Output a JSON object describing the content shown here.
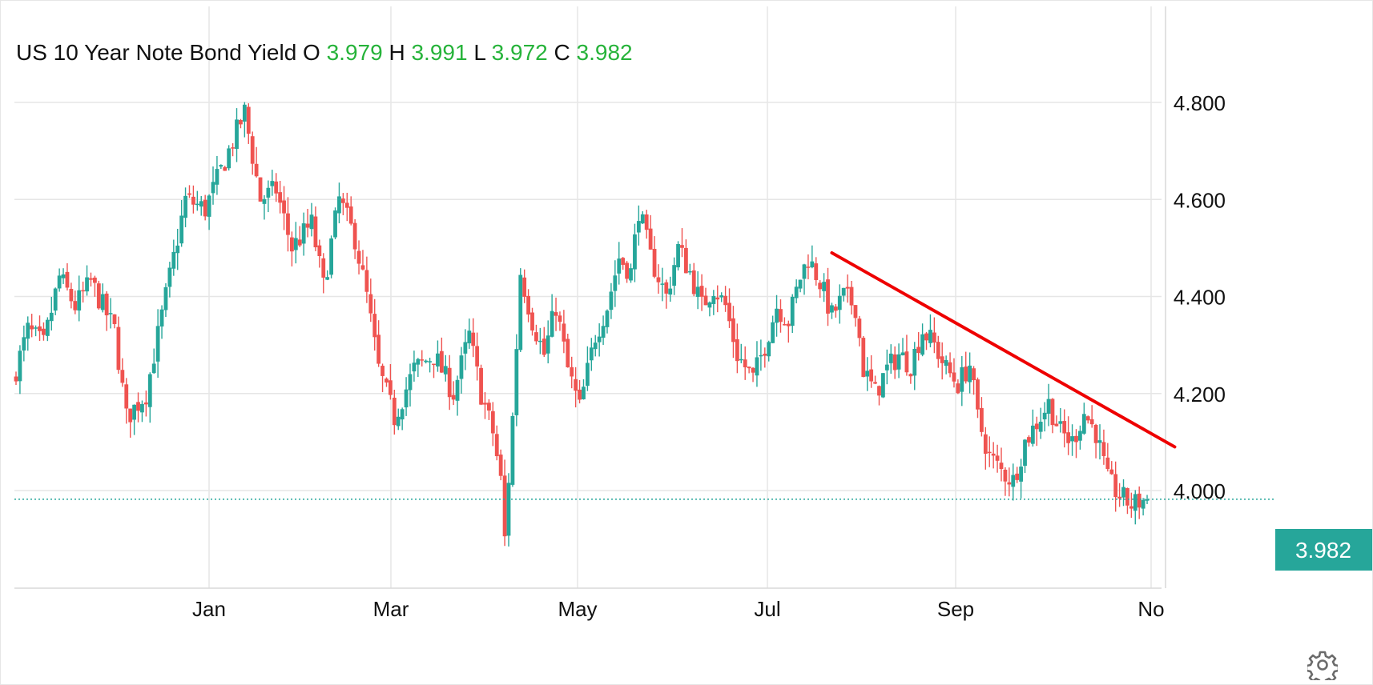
{
  "legend": {
    "title": "US 10 Year Note Bond Yield",
    "o_label": "O",
    "o_value": "3.979",
    "h_label": "H",
    "h_value": "3.991",
    "l_label": "L",
    "l_value": "3.972",
    "c_label": "C",
    "c_value": "3.982"
  },
  "last_price_label": "3.982",
  "colors": {
    "up": "#26a69a",
    "down": "#ef5350",
    "trendline": "#ee0000",
    "last_price_bg": "#26a69a",
    "legend_values": "#26b33a",
    "grid": "#e6e6e6"
  },
  "settings_icon": "gear-icon",
  "chart_data": {
    "type": "candlestick",
    "title": "US 10 Year Note Bond Yield",
    "x_tick_labels": [
      "Jan",
      "Mar",
      "May",
      "Jul",
      "Sep",
      "No"
    ],
    "y_tick_labels": [
      "4.800",
      "4.600",
      "4.400",
      "4.200",
      "4.000"
    ],
    "y_ticks": [
      4.8,
      4.6,
      4.4,
      4.2,
      4.0
    ],
    "ylim": [
      3.8,
      4.98
    ],
    "grid": true,
    "last_price": 3.982,
    "ohlc": {
      "open": 3.979,
      "high": 3.991,
      "low": 3.972,
      "close": 3.982
    },
    "close_anchors": [
      {
        "t": 0,
        "v": 4.25
      },
      {
        "t": 3,
        "v": 4.33
      },
      {
        "t": 7,
        "v": 4.3
      },
      {
        "t": 11,
        "v": 4.44
      },
      {
        "t": 15,
        "v": 4.38
      },
      {
        "t": 19,
        "v": 4.43
      },
      {
        "t": 25,
        "v": 4.33
      },
      {
        "t": 28,
        "v": 4.15
      },
      {
        "t": 33,
        "v": 4.2
      },
      {
        "t": 38,
        "v": 4.4
      },
      {
        "t": 43,
        "v": 4.6
      },
      {
        "t": 48,
        "v": 4.58
      },
      {
        "t": 53,
        "v": 4.68
      },
      {
        "t": 58,
        "v": 4.78
      },
      {
        "t": 62,
        "v": 4.6
      },
      {
        "t": 66,
        "v": 4.62
      },
      {
        "t": 70,
        "v": 4.5
      },
      {
        "t": 75,
        "v": 4.55
      },
      {
        "t": 78,
        "v": 4.42
      },
      {
        "t": 82,
        "v": 4.6
      },
      {
        "t": 86,
        "v": 4.52
      },
      {
        "t": 89,
        "v": 4.4
      },
      {
        "t": 92,
        "v": 4.25
      },
      {
        "t": 96,
        "v": 4.15
      },
      {
        "t": 101,
        "v": 4.25
      },
      {
        "t": 106,
        "v": 4.28
      },
      {
        "t": 111,
        "v": 4.2
      },
      {
        "t": 115,
        "v": 4.32
      },
      {
        "t": 118,
        "v": 4.2
      },
      {
        "t": 121,
        "v": 4.12
      },
      {
        "t": 123,
        "v": 4.02
      },
      {
        "t": 124,
        "v": 3.9
      },
      {
        "t": 126,
        "v": 4.15
      },
      {
        "t": 128,
        "v": 4.45
      },
      {
        "t": 131,
        "v": 4.35
      },
      {
        "t": 134,
        "v": 4.28
      },
      {
        "t": 137,
        "v": 4.38
      },
      {
        "t": 140,
        "v": 4.25
      },
      {
        "t": 143,
        "v": 4.17
      },
      {
        "t": 147,
        "v": 4.32
      },
      {
        "t": 150,
        "v": 4.38
      },
      {
        "t": 153,
        "v": 4.48
      },
      {
        "t": 156,
        "v": 4.45
      },
      {
        "t": 158,
        "v": 4.58
      },
      {
        "t": 161,
        "v": 4.48
      },
      {
        "t": 165,
        "v": 4.4
      },
      {
        "t": 168,
        "v": 4.5
      },
      {
        "t": 171,
        "v": 4.45
      },
      {
        "t": 174,
        "v": 4.38
      },
      {
        "t": 177,
        "v": 4.42
      },
      {
        "t": 180,
        "v": 4.38
      },
      {
        "t": 183,
        "v": 4.28
      },
      {
        "t": 187,
        "v": 4.23
      },
      {
        "t": 190,
        "v": 4.3
      },
      {
        "t": 193,
        "v": 4.38
      },
      {
        "t": 196,
        "v": 4.35
      },
      {
        "t": 199,
        "v": 4.44
      },
      {
        "t": 201,
        "v": 4.48
      },
      {
        "t": 204,
        "v": 4.43
      },
      {
        "t": 207,
        "v": 4.36
      },
      {
        "t": 210,
        "v": 4.4
      },
      {
        "t": 213,
        "v": 4.38
      },
      {
        "t": 215,
        "v": 4.25
      },
      {
        "t": 218,
        "v": 4.2
      },
      {
        "t": 221,
        "v": 4.25
      },
      {
        "t": 224,
        "v": 4.28
      },
      {
        "t": 227,
        "v": 4.26
      },
      {
        "t": 230,
        "v": 4.33
      },
      {
        "t": 233,
        "v": 4.3
      },
      {
        "t": 236,
        "v": 4.25
      },
      {
        "t": 239,
        "v": 4.22
      },
      {
        "t": 242,
        "v": 4.26
      },
      {
        "t": 244,
        "v": 4.15
      },
      {
        "t": 247,
        "v": 4.07
      },
      {
        "t": 250,
        "v": 4.04
      },
      {
        "t": 253,
        "v": 4.02
      },
      {
        "t": 256,
        "v": 4.1
      },
      {
        "t": 259,
        "v": 4.14
      },
      {
        "t": 262,
        "v": 4.18
      },
      {
        "t": 265,
        "v": 4.12
      },
      {
        "t": 268,
        "v": 4.1
      },
      {
        "t": 271,
        "v": 4.16
      },
      {
        "t": 274,
        "v": 4.12
      },
      {
        "t": 277,
        "v": 4.02
      },
      {
        "t": 280,
        "v": 3.99
      },
      {
        "t": 283,
        "v": 3.97
      },
      {
        "t": 286,
        "v": 3.98
      },
      {
        "t": 287,
        "v": 3.982
      }
    ],
    "trendline": {
      "start": {
        "t": 207,
        "v": 4.49
      },
      "end": {
        "t": 294,
        "v": 4.09
      }
    }
  }
}
